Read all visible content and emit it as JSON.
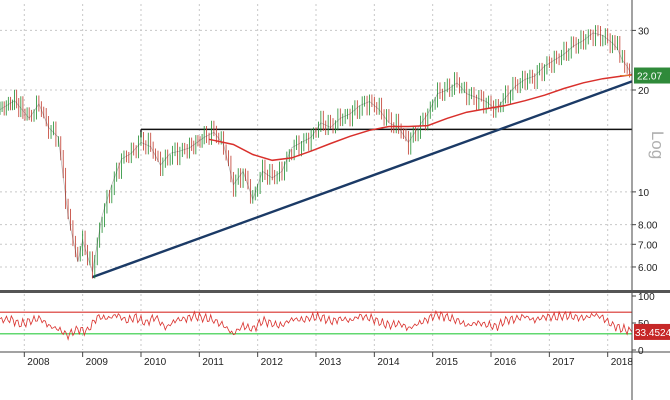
{
  "chart_data": [
    {
      "type": "candlestick",
      "scale": "log",
      "scale_label": "Log",
      "ylim": [
        5.2,
        34
      ],
      "y_ticks": [
        "30",
        "20",
        "10",
        "8.00",
        "7.00",
        "6.00"
      ],
      "y_tick_values": [
        30,
        20,
        10,
        8,
        7,
        6
      ],
      "x_range": [
        "2007-08",
        "2018-06"
      ],
      "x_ticks": [
        "2008",
        "2009",
        "2010",
        "2011",
        "2012",
        "2013",
        "2014",
        "2015",
        "2016",
        "2017",
        "2018"
      ],
      "grid": true,
      "last_value_label": "22.07",
      "series": [
        {
          "values": [
            [
              "2007-08",
              17.5
            ],
            [
              "2007-11",
              18.6
            ],
            [
              "2008-02",
              16.5
            ],
            [
              "2008-04",
              18.2
            ],
            [
              "2008-06",
              15.5
            ],
            [
              "2008-08",
              14.5
            ],
            [
              "2008-10",
              8.5
            ],
            [
              "2008-12",
              6.2
            ],
            [
              "2009-01",
              7.2
            ],
            [
              "2009-03",
              5.8
            ],
            [
              "2009-05",
              8.5
            ],
            [
              "2009-07",
              10.5
            ],
            [
              "2009-09",
              12.5
            ],
            [
              "2009-11",
              13.0
            ],
            [
              "2010-01",
              14.0
            ],
            [
              "2010-03",
              13.6
            ],
            [
              "2010-05",
              12.0
            ],
            [
              "2010-07",
              13.0
            ],
            [
              "2010-09",
              13.2
            ],
            [
              "2010-11",
              13.5
            ],
            [
              "2011-02",
              14.5
            ],
            [
              "2011-04",
              15.0
            ],
            [
              "2011-06",
              13.8
            ],
            [
              "2011-08",
              10.5
            ],
            [
              "2011-10",
              11.5
            ],
            [
              "2011-12",
              9.5
            ],
            [
              "2012-02",
              11.5
            ],
            [
              "2012-04",
              11.0
            ],
            [
              "2012-06",
              11.5
            ],
            [
              "2012-08",
              13.5
            ],
            [
              "2012-10",
              14.0
            ],
            [
              "2012-12",
              14.5
            ],
            [
              "2013-02",
              16.0
            ],
            [
              "2013-04",
              15.5
            ],
            [
              "2013-06",
              16.5
            ],
            [
              "2013-08",
              17.0
            ],
            [
              "2013-10",
              18.0
            ],
            [
              "2013-12",
              18.5
            ],
            [
              "2014-02",
              17.5
            ],
            [
              "2014-04",
              16.0
            ],
            [
              "2014-06",
              15.5
            ],
            [
              "2014-08",
              14.0
            ],
            [
              "2014-10",
              15.5
            ],
            [
              "2014-12",
              17.0
            ],
            [
              "2015-02",
              19.5
            ],
            [
              "2015-04",
              20.0
            ],
            [
              "2015-06",
              21.0
            ],
            [
              "2015-08",
              19.5
            ],
            [
              "2015-10",
              19.0
            ],
            [
              "2015-12",
              18.5
            ],
            [
              "2016-02",
              17.5
            ],
            [
              "2016-04",
              19.0
            ],
            [
              "2016-06",
              20.5
            ],
            [
              "2016-08",
              21.5
            ],
            [
              "2016-10",
              22.0
            ],
            [
              "2016-12",
              23.5
            ],
            [
              "2017-02",
              24.5
            ],
            [
              "2017-04",
              25.5
            ],
            [
              "2017-06",
              27.0
            ],
            [
              "2017-08",
              28.0
            ],
            [
              "2017-10",
              29.5
            ],
            [
              "2017-12",
              29.0
            ],
            [
              "2018-02",
              27.5
            ],
            [
              "2018-03",
              26.5
            ],
            [
              "2018-04",
              24.5
            ],
            [
              "2018-05",
              23.5
            ],
            [
              "2018-06",
              22.07
            ]
          ],
          "color": "#1e8c2e"
        },
        {
          "values": [
            [
              "2011-03",
              14.3
            ],
            [
              "2011-08",
              13.8
            ],
            [
              "2011-12",
              12.9
            ],
            [
              "2012-04",
              12.4
            ],
            [
              "2012-08",
              12.6
            ],
            [
              "2012-12",
              13.2
            ],
            [
              "2013-04",
              13.9
            ],
            [
              "2013-08",
              14.6
            ],
            [
              "2013-12",
              15.2
            ],
            [
              "2014-04",
              15.6
            ],
            [
              "2014-08",
              15.6
            ],
            [
              "2014-12",
              15.7
            ],
            [
              "2015-04",
              16.5
            ],
            [
              "2015-08",
              17.2
            ],
            [
              "2015-12",
              17.6
            ],
            [
              "2016-04",
              18.0
            ],
            [
              "2016-08",
              18.6
            ],
            [
              "2016-12",
              19.3
            ],
            [
              "2017-04",
              20.2
            ],
            [
              "2017-08",
              21.0
            ],
            [
              "2017-12",
              21.6
            ],
            [
              "2018-04",
              22.0
            ],
            [
              "2018-06",
              22.2
            ]
          ],
          "color": "#d9302c"
        }
      ],
      "annotations": [
        {
          "kind": "horizontal_line",
          "color": "#111111",
          "start": "2010-01",
          "end": "2018-06",
          "y": 15.3
        },
        {
          "kind": "trend_line",
          "color": "#1b3a66",
          "from": [
            "2009-03",
            5.6
          ],
          "to": [
            "2018-06",
            21.2
          ]
        }
      ]
    },
    {
      "type": "line",
      "ylim": [
        0,
        100
      ],
      "y_ticks": [
        "100",
        "50",
        "0"
      ],
      "y_tick_values": [
        100,
        50,
        0
      ],
      "last_value_label": "33.4524",
      "reference_lines": [
        {
          "value": 70,
          "color": "#d9302c"
        },
        {
          "value": 30,
          "color": "#2ecc40"
        }
      ],
      "series": [
        {
          "color": "#d9302c",
          "values": [
            [
              "2007-08",
              55
            ],
            [
              "2007-10",
              58
            ],
            [
              "2007-12",
              48
            ],
            [
              "2008-02",
              52
            ],
            [
              "2008-04",
              60
            ],
            [
              "2008-06",
              45
            ],
            [
              "2008-08",
              38
            ],
            [
              "2008-10",
              28
            ],
            [
              "2008-12",
              38
            ],
            [
              "2009-02",
              35
            ],
            [
              "2009-04",
              62
            ],
            [
              "2009-06",
              58
            ],
            [
              "2009-08",
              65
            ],
            [
              "2009-10",
              55
            ],
            [
              "2009-12",
              60
            ],
            [
              "2010-02",
              50
            ],
            [
              "2010-04",
              62
            ],
            [
              "2010-06",
              40
            ],
            [
              "2010-08",
              55
            ],
            [
              "2010-10",
              58
            ],
            [
              "2010-12",
              62
            ],
            [
              "2011-02",
              60
            ],
            [
              "2011-04",
              55
            ],
            [
              "2011-06",
              45
            ],
            [
              "2011-08",
              30
            ],
            [
              "2011-10",
              45
            ],
            [
              "2011-12",
              38
            ],
            [
              "2012-02",
              55
            ],
            [
              "2012-04",
              48
            ],
            [
              "2012-06",
              45
            ],
            [
              "2012-08",
              58
            ],
            [
              "2012-10",
              55
            ],
            [
              "2012-12",
              60
            ],
            [
              "2013-02",
              62
            ],
            [
              "2013-04",
              52
            ],
            [
              "2013-06",
              58
            ],
            [
              "2013-08",
              55
            ],
            [
              "2013-10",
              62
            ],
            [
              "2013-12",
              60
            ],
            [
              "2014-02",
              52
            ],
            [
              "2014-04",
              45
            ],
            [
              "2014-06",
              50
            ],
            [
              "2014-08",
              40
            ],
            [
              "2014-10",
              48
            ],
            [
              "2014-12",
              58
            ],
            [
              "2015-02",
              66
            ],
            [
              "2015-04",
              60
            ],
            [
              "2015-06",
              56
            ],
            [
              "2015-08",
              45
            ],
            [
              "2015-10",
              50
            ],
            [
              "2015-12",
              48
            ],
            [
              "2016-02",
              42
            ],
            [
              "2016-04",
              55
            ],
            [
              "2016-06",
              58
            ],
            [
              "2016-08",
              62
            ],
            [
              "2016-10",
              55
            ],
            [
              "2016-12",
              62
            ],
            [
              "2017-02",
              60
            ],
            [
              "2017-04",
              64
            ],
            [
              "2017-06",
              62
            ],
            [
              "2017-08",
              58
            ],
            [
              "2017-10",
              66
            ],
            [
              "2017-12",
              60
            ],
            [
              "2018-02",
              45
            ],
            [
              "2018-04",
              40
            ],
            [
              "2018-06",
              33.45
            ]
          ]
        }
      ]
    }
  ],
  "colors": {
    "background": "#ffffff",
    "grid": "#c8c8c8",
    "separator": "#555555",
    "price_badge": "#2f8a3a",
    "rsi_badge": "#c62828"
  }
}
